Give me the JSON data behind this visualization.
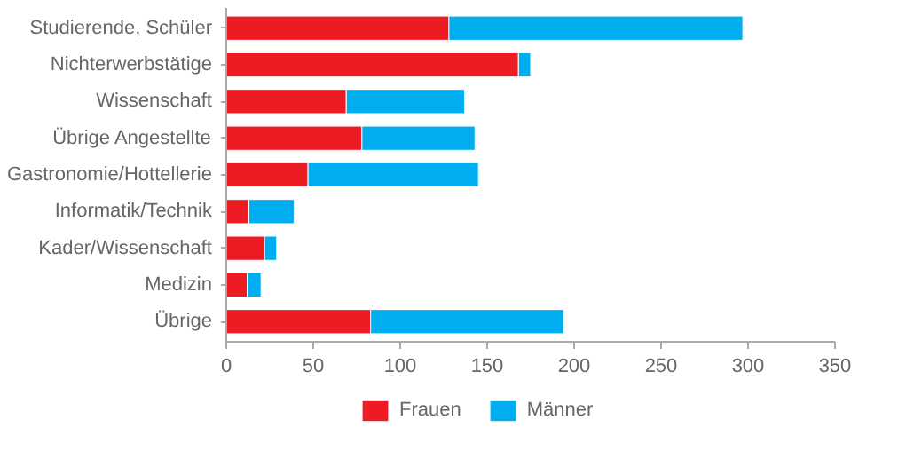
{
  "chart_data": {
    "type": "bar",
    "orientation": "horizontal",
    "stacked": true,
    "categories": [
      "Studierende, Schüler",
      "Nichterwerbstätige",
      "Wissenschaft",
      "Übrige Angestellte",
      "Gastronomie/Hottellerie",
      "Informatik/Technik",
      "Kader/Wissenschaft",
      "Medizin",
      "Übrige"
    ],
    "series": [
      {
        "name": "Frauen",
        "color": "#ed1c24",
        "values": [
          128,
          168,
          69,
          78,
          47,
          13,
          22,
          12,
          83
        ]
      },
      {
        "name": "Männer",
        "color": "#00aeef",
        "values": [
          169,
          7,
          68,
          65,
          98,
          26,
          7,
          8,
          111
        ]
      }
    ],
    "xlim": [
      0,
      350
    ],
    "xticks": [
      0,
      50,
      100,
      150,
      200,
      250,
      300,
      350
    ],
    "grid": false,
    "legend": "bottom"
  }
}
